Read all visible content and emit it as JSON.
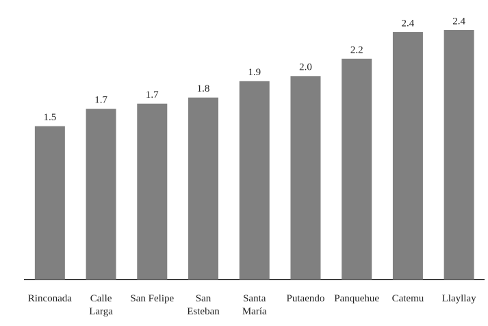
{
  "chart_data": {
    "type": "bar",
    "categories": [
      "Rinconada",
      "Calle\nLarga",
      "San Felipe",
      "San\nEsteban",
      "Santa\nMaría",
      "Putaendo",
      "Panquehue",
      "Catemu",
      "Llayllay"
    ],
    "values": [
      1.5,
      1.67,
      1.72,
      1.78,
      1.94,
      1.99,
      2.16,
      2.42,
      2.44
    ],
    "value_labels": [
      "1.5",
      "1.7",
      "1.7",
      "1.8",
      "1.9",
      "2.0",
      "2.2",
      "2.4",
      "2.4"
    ],
    "color": "#808080",
    "ylim": [
      0,
      2.5
    ]
  }
}
